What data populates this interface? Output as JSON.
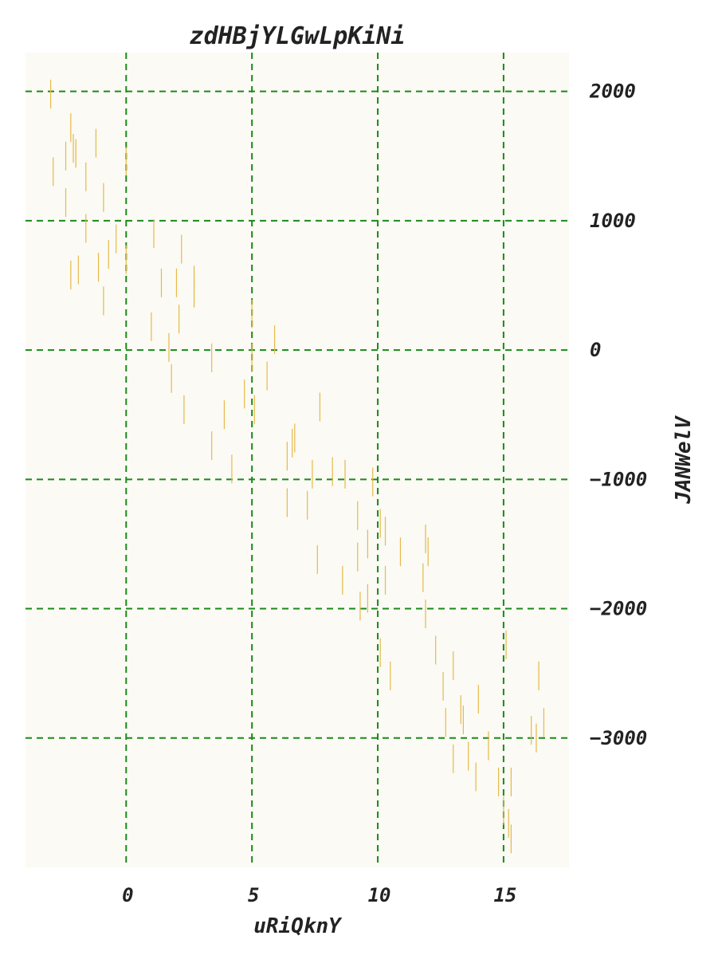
{
  "chart_data": {
    "type": "scatter",
    "marker": "vertical-line",
    "title": "zdHBjYLGwLpKiNi",
    "xlabel": "uRiQknY",
    "ylabel": "JANWelV",
    "xlim": [
      -4,
      17.6
    ],
    "ylim": [
      -4000,
      2300
    ],
    "xticks": [
      0,
      5,
      10,
      15
    ],
    "xtick_labels": [
      "0",
      "5",
      "10",
      "15"
    ],
    "yticks": [
      2000,
      1000,
      0,
      -1000,
      -2000,
      -3000
    ],
    "ytick_labels": [
      "2000",
      "1000",
      "0",
      "−1000",
      "−2000",
      "−3000"
    ],
    "y_axis_side": "right",
    "grid": true,
    "colors": {
      "marker": "#e6b94a",
      "grid": "#1a8a1a",
      "plot_background": "#fbfaf4",
      "text": "#222222"
    },
    "points": [
      {
        "x": -3.0,
        "y": 1980
      },
      {
        "x": -2.9,
        "y": 1380
      },
      {
        "x": -2.4,
        "y": 1500
      },
      {
        "x": -2.4,
        "y": 1140
      },
      {
        "x": -2.2,
        "y": 1720
      },
      {
        "x": -2.1,
        "y": 1560
      },
      {
        "x": -2.0,
        "y": 1520
      },
      {
        "x": -2.2,
        "y": 580
      },
      {
        "x": -1.9,
        "y": 620
      },
      {
        "x": -1.6,
        "y": 940
      },
      {
        "x": -1.6,
        "y": 1340
      },
      {
        "x": -1.2,
        "y": 1600
      },
      {
        "x": -1.1,
        "y": 640
      },
      {
        "x": -0.9,
        "y": 1180
      },
      {
        "x": -0.9,
        "y": 380
      },
      {
        "x": -0.7,
        "y": 740
      },
      {
        "x": -0.4,
        "y": 860
      },
      {
        "x": 0.0,
        "y": 1460
      },
      {
        "x": 0.0,
        "y": 700
      },
      {
        "x": 1.1,
        "y": 900
      },
      {
        "x": 1.0,
        "y": 180
      },
      {
        "x": 1.4,
        "y": 520
      },
      {
        "x": 1.7,
        "y": 20
      },
      {
        "x": 1.8,
        "y": -220
      },
      {
        "x": 2.0,
        "y": 520
      },
      {
        "x": 2.1,
        "y": 240
      },
      {
        "x": 2.2,
        "y": 780
      },
      {
        "x": 2.3,
        "y": -460
      },
      {
        "x": 2.7,
        "y": 440
      },
      {
        "x": 2.7,
        "y": 540
      },
      {
        "x": 3.4,
        "y": -60
      },
      {
        "x": 3.4,
        "y": -740
      },
      {
        "x": 3.9,
        "y": -500
      },
      {
        "x": 4.2,
        "y": -920
      },
      {
        "x": 4.7,
        "y": -340
      },
      {
        "x": 5.0,
        "y": 280
      },
      {
        "x": 5.0,
        "y": -60
      },
      {
        "x": 5.1,
        "y": -460
      },
      {
        "x": 5.6,
        "y": -200
      },
      {
        "x": 5.9,
        "y": 80
      },
      {
        "x": 6.4,
        "y": -820
      },
      {
        "x": 6.4,
        "y": -1180
      },
      {
        "x": 6.6,
        "y": -720
      },
      {
        "x": 6.7,
        "y": -680
      },
      {
        "x": 7.2,
        "y": -1200
      },
      {
        "x": 7.4,
        "y": -960
      },
      {
        "x": 7.6,
        "y": -1620
      },
      {
        "x": 7.7,
        "y": -440
      },
      {
        "x": 8.2,
        "y": -940
      },
      {
        "x": 8.6,
        "y": -1780
      },
      {
        "x": 8.7,
        "y": -960
      },
      {
        "x": 9.2,
        "y": -1280
      },
      {
        "x": 9.2,
        "y": -1600
      },
      {
        "x": 9.3,
        "y": -1980
      },
      {
        "x": 9.6,
        "y": -1920
      },
      {
        "x": 9.6,
        "y": -1500
      },
      {
        "x": 9.8,
        "y": -1020
      },
      {
        "x": 10.1,
        "y": -1340
      },
      {
        "x": 10.1,
        "y": -2340
      },
      {
        "x": 10.3,
        "y": -1400
      },
      {
        "x": 10.3,
        "y": -1780
      },
      {
        "x": 10.5,
        "y": -2520
      },
      {
        "x": 10.9,
        "y": -1560
      },
      {
        "x": 11.8,
        "y": -1760
      },
      {
        "x": 11.9,
        "y": -1460
      },
      {
        "x": 11.9,
        "y": -2040
      },
      {
        "x": 12.0,
        "y": -1560
      },
      {
        "x": 12.3,
        "y": -2320
      },
      {
        "x": 12.6,
        "y": -2600
      },
      {
        "x": 12.7,
        "y": -2880
      },
      {
        "x": 13.0,
        "y": -2440
      },
      {
        "x": 13.0,
        "y": -3160
      },
      {
        "x": 13.3,
        "y": -2780
      },
      {
        "x": 13.4,
        "y": -2860
      },
      {
        "x": 13.6,
        "y": -3140
      },
      {
        "x": 13.9,
        "y": -3300
      },
      {
        "x": 14.0,
        "y": -2700
      },
      {
        "x": 14.4,
        "y": -3060
      },
      {
        "x": 14.8,
        "y": -3340
      },
      {
        "x": 15.0,
        "y": -3560
      },
      {
        "x": 15.1,
        "y": -2280
      },
      {
        "x": 15.2,
        "y": -3660
      },
      {
        "x": 15.3,
        "y": -3340
      },
      {
        "x": 15.3,
        "y": -3780
      },
      {
        "x": 16.1,
        "y": -2940
      },
      {
        "x": 16.3,
        "y": -3000
      },
      {
        "x": 16.4,
        "y": -2520
      },
      {
        "x": 16.6,
        "y": -2880
      }
    ]
  }
}
